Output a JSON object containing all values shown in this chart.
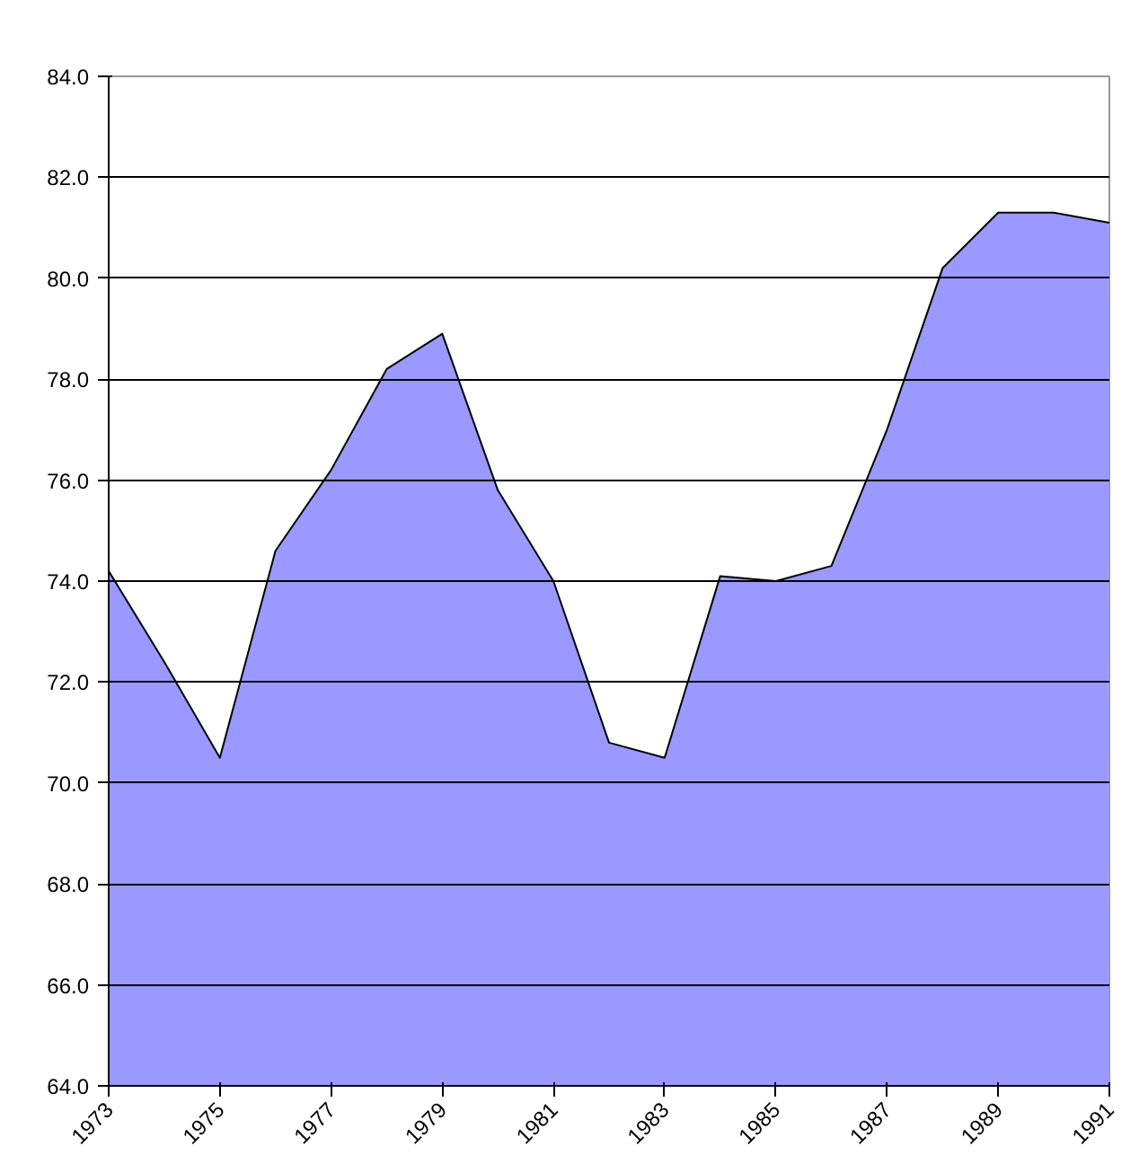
{
  "chart_data": {
    "type": "area",
    "color": "#9999ff",
    "x": [
      1973,
      1974,
      1975,
      1976,
      1977,
      1978,
      1979,
      1980,
      1981,
      1982,
      1983,
      1984,
      1985,
      1986,
      1987,
      1988,
      1989,
      1990,
      1991
    ],
    "values": [
      74.2,
      72.4,
      70.5,
      74.6,
      76.2,
      78.2,
      78.9,
      75.8,
      74.0,
      70.8,
      70.5,
      74.1,
      74.0,
      74.3,
      77.0,
      80.2,
      81.3,
      81.3,
      81.1
    ],
    "xlim": [
      1973,
      1991
    ],
    "xticks": [
      1973,
      1975,
      1977,
      1979,
      1981,
      1983,
      1985,
      1987,
      1989,
      1991
    ],
    "ylim": [
      64,
      84
    ],
    "yticks": [
      {
        "value": 64,
        "label": "64.0"
      },
      {
        "value": 66,
        "label": "66.0"
      },
      {
        "value": 68,
        "label": "68.0"
      },
      {
        "value": 70,
        "label": "70.0"
      },
      {
        "value": 72,
        "label": "72.0"
      },
      {
        "value": 74,
        "label": "74.0"
      },
      {
        "value": 76,
        "label": "76.0"
      },
      {
        "value": 78,
        "label": "78.0"
      },
      {
        "value": 80,
        "label": "80.0"
      },
      {
        "value": 82,
        "label": "82.0"
      },
      {
        "value": 84,
        "label": "84.0"
      }
    ],
    "grid": "y"
  }
}
